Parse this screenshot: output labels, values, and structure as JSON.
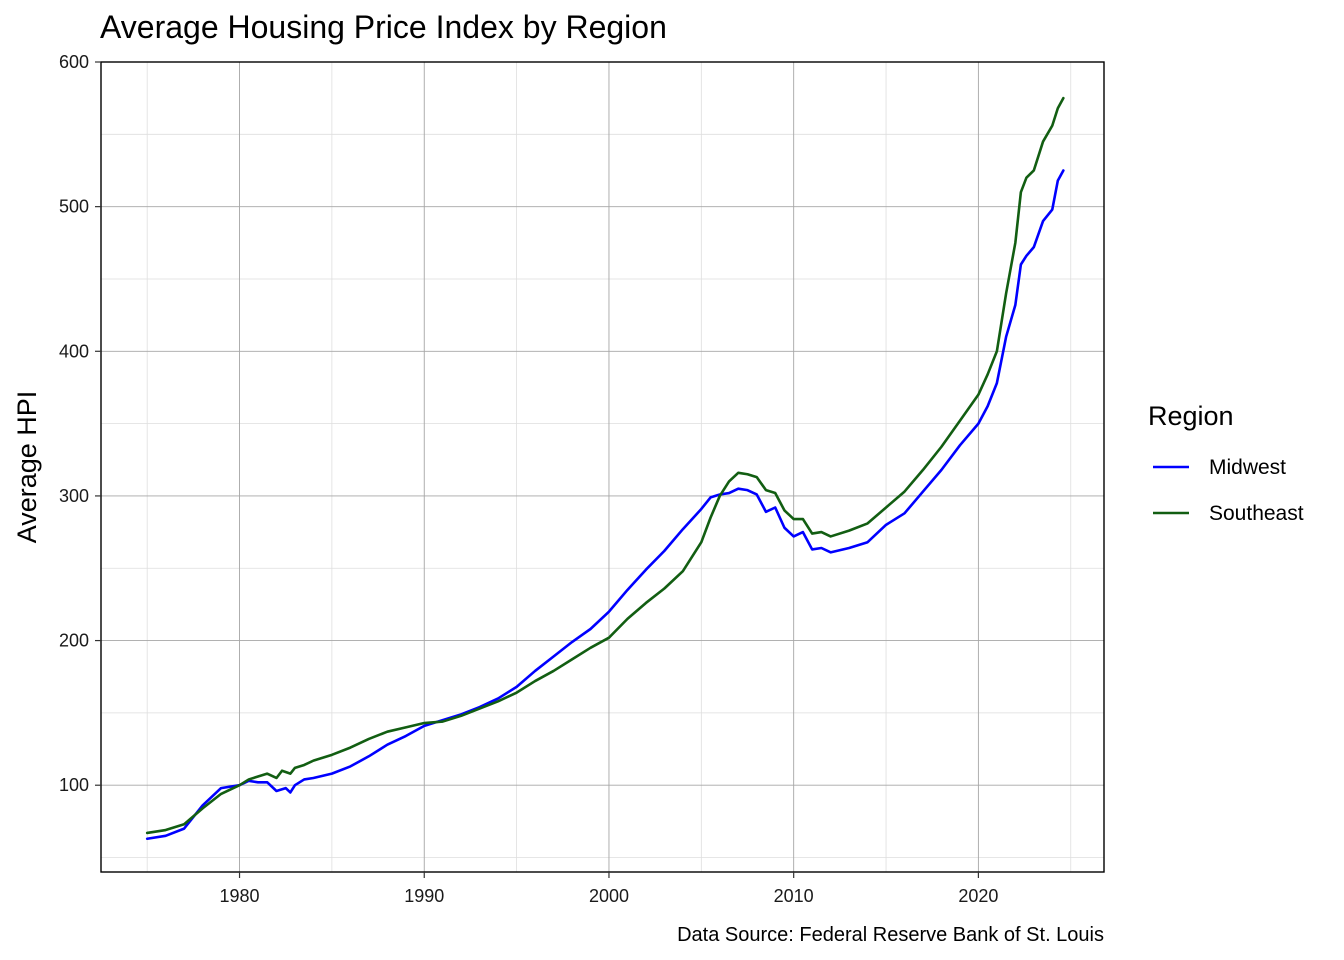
{
  "chart_data": {
    "type": "line",
    "title": "Average Housing Price Index by Region",
    "xlabel": "",
    "ylabel": "Average HPI",
    "caption": "Data Source: Federal Reserve Bank of St. Louis",
    "legend_title": "Region",
    "legend_position": "right",
    "xlim": [
      1972.5,
      2026.8
    ],
    "ylim": [
      40,
      600
    ],
    "x_ticks": [
      1980,
      1990,
      2000,
      2010,
      2020
    ],
    "y_ticks": [
      100,
      200,
      300,
      400,
      500,
      600
    ],
    "x_tick_labels": [
      "1980",
      "1990",
      "2000",
      "2010",
      "2020"
    ],
    "y_tick_labels": [
      "100",
      "200",
      "300",
      "400",
      "500",
      "600"
    ],
    "grid": true,
    "series": [
      {
        "name": "Midwest",
        "color": "#0000ff",
        "points": [
          [
            1975.0,
            63
          ],
          [
            1976.0,
            65
          ],
          [
            1977.0,
            70
          ],
          [
            1978.0,
            86
          ],
          [
            1979.0,
            98
          ],
          [
            1980.0,
            100
          ],
          [
            1980.5,
            103
          ],
          [
            1981.0,
            102
          ],
          [
            1981.5,
            102
          ],
          [
            1982.0,
            96
          ],
          [
            1982.5,
            98
          ],
          [
            1982.75,
            95
          ],
          [
            1983.0,
            100
          ],
          [
            1983.5,
            104
          ],
          [
            1984.0,
            105
          ],
          [
            1985.0,
            108
          ],
          [
            1986.0,
            113
          ],
          [
            1987.0,
            120
          ],
          [
            1988.0,
            128
          ],
          [
            1989.0,
            134
          ],
          [
            1990.0,
            141
          ],
          [
            1991.0,
            145
          ],
          [
            1992.0,
            149
          ],
          [
            1993.0,
            154
          ],
          [
            1994.0,
            160
          ],
          [
            1995.0,
            168
          ],
          [
            1996.0,
            179
          ],
          [
            1997.0,
            189
          ],
          [
            1998.0,
            199
          ],
          [
            1999.0,
            208
          ],
          [
            2000.0,
            220
          ],
          [
            2001.0,
            235
          ],
          [
            2002.0,
            249
          ],
          [
            2003.0,
            262
          ],
          [
            2004.0,
            277
          ],
          [
            2005.0,
            291
          ],
          [
            2005.5,
            299
          ],
          [
            2006.0,
            301
          ],
          [
            2006.5,
            302
          ],
          [
            2007.0,
            305
          ],
          [
            2007.5,
            304
          ],
          [
            2008.0,
            301
          ],
          [
            2008.5,
            289
          ],
          [
            2009.0,
            292
          ],
          [
            2009.5,
            278
          ],
          [
            2010.0,
            272
          ],
          [
            2010.5,
            275
          ],
          [
            2011.0,
            263
          ],
          [
            2011.5,
            264
          ],
          [
            2012.0,
            261
          ],
          [
            2013.0,
            264
          ],
          [
            2014.0,
            268
          ],
          [
            2015.0,
            280
          ],
          [
            2016.0,
            288
          ],
          [
            2017.0,
            303
          ],
          [
            2018.0,
            318
          ],
          [
            2019.0,
            335
          ],
          [
            2020.0,
            350
          ],
          [
            2020.5,
            362
          ],
          [
            2021.0,
            378
          ],
          [
            2021.5,
            410
          ],
          [
            2022.0,
            432
          ],
          [
            2022.3,
            460
          ],
          [
            2022.6,
            466
          ],
          [
            2023.0,
            472
          ],
          [
            2023.5,
            490
          ],
          [
            2024.0,
            498
          ],
          [
            2024.3,
            518
          ],
          [
            2024.6,
            525
          ]
        ]
      },
      {
        "name": "Southeast",
        "color": "#125e12",
        "points": [
          [
            1975.0,
            67
          ],
          [
            1976.0,
            69
          ],
          [
            1977.0,
            73
          ],
          [
            1978.0,
            84
          ],
          [
            1979.0,
            94
          ],
          [
            1980.0,
            100
          ],
          [
            1980.5,
            104
          ],
          [
            1981.0,
            106
          ],
          [
            1981.5,
            108
          ],
          [
            1982.0,
            105
          ],
          [
            1982.3,
            110
          ],
          [
            1982.75,
            108
          ],
          [
            1983.0,
            112
          ],
          [
            1983.5,
            114
          ],
          [
            1984.0,
            117
          ],
          [
            1985.0,
            121
          ],
          [
            1986.0,
            126
          ],
          [
            1987.0,
            132
          ],
          [
            1988.0,
            137
          ],
          [
            1989.0,
            140
          ],
          [
            1990.0,
            143
          ],
          [
            1991.0,
            144
          ],
          [
            1992.0,
            148
          ],
          [
            1993.0,
            153
          ],
          [
            1994.0,
            158
          ],
          [
            1995.0,
            164
          ],
          [
            1996.0,
            172
          ],
          [
            1997.0,
            179
          ],
          [
            1998.0,
            187
          ],
          [
            1999.0,
            195
          ],
          [
            2000.0,
            202
          ],
          [
            2001.0,
            215
          ],
          [
            2002.0,
            226
          ],
          [
            2003.0,
            236
          ],
          [
            2004.0,
            248
          ],
          [
            2005.0,
            268
          ],
          [
            2005.5,
            285
          ],
          [
            2006.0,
            300
          ],
          [
            2006.5,
            310
          ],
          [
            2007.0,
            316
          ],
          [
            2007.5,
            315
          ],
          [
            2008.0,
            313
          ],
          [
            2008.5,
            304
          ],
          [
            2009.0,
            302
          ],
          [
            2009.5,
            290
          ],
          [
            2010.0,
            284
          ],
          [
            2010.5,
            284
          ],
          [
            2011.0,
            274
          ],
          [
            2011.5,
            275
          ],
          [
            2012.0,
            272
          ],
          [
            2013.0,
            276
          ],
          [
            2014.0,
            281
          ],
          [
            2015.0,
            292
          ],
          [
            2016.0,
            303
          ],
          [
            2017.0,
            318
          ],
          [
            2018.0,
            334
          ],
          [
            2019.0,
            352
          ],
          [
            2020.0,
            370
          ],
          [
            2020.5,
            384
          ],
          [
            2021.0,
            400
          ],
          [
            2021.5,
            440
          ],
          [
            2022.0,
            475
          ],
          [
            2022.3,
            510
          ],
          [
            2022.6,
            520
          ],
          [
            2023.0,
            525
          ],
          [
            2023.5,
            545
          ],
          [
            2024.0,
            556
          ],
          [
            2024.3,
            568
          ],
          [
            2024.6,
            575
          ]
        ]
      }
    ]
  }
}
